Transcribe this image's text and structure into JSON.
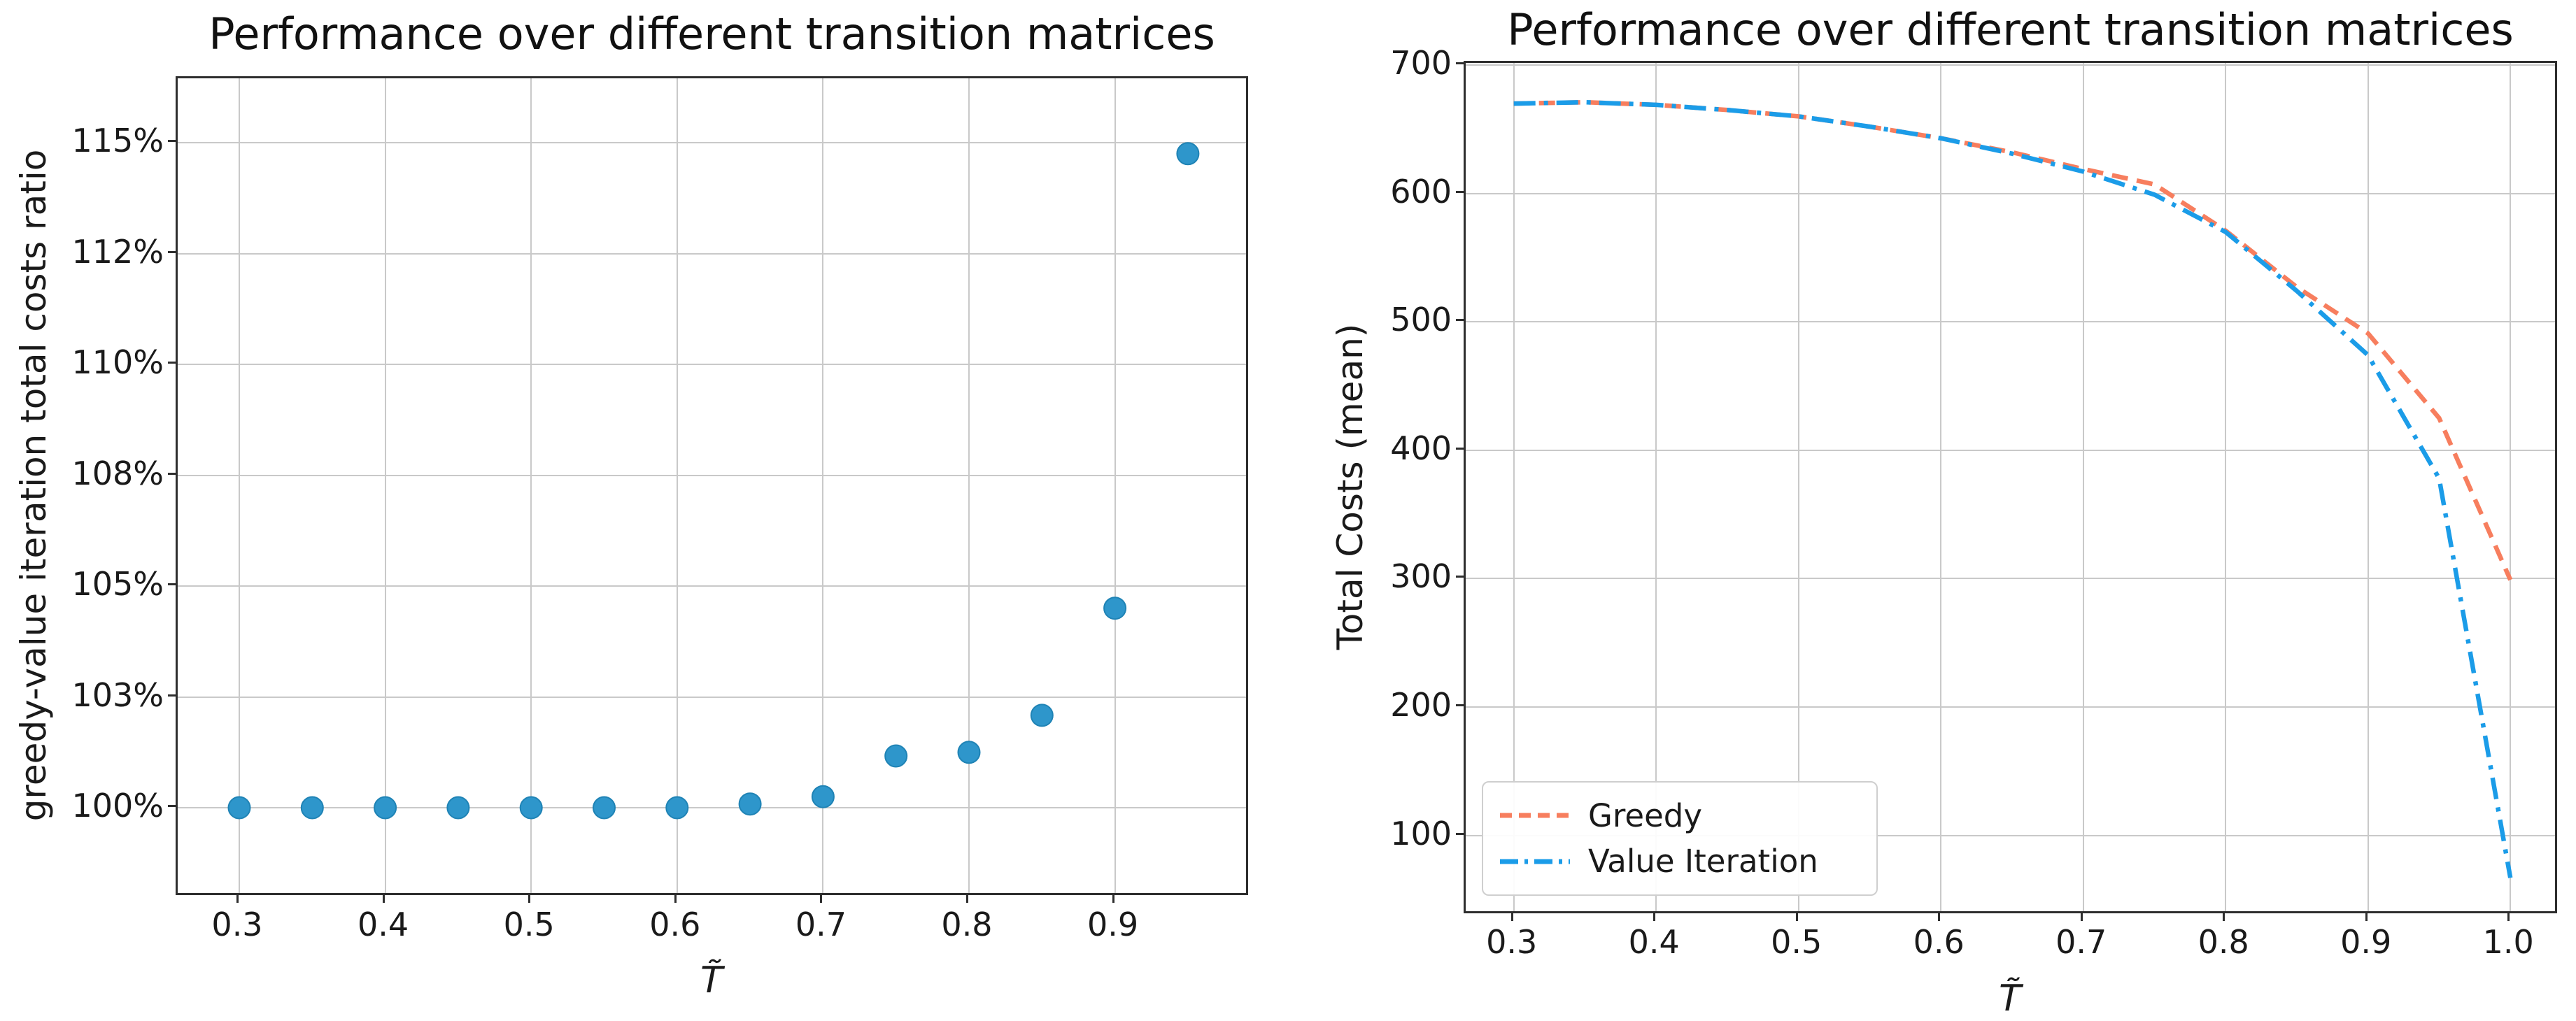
{
  "figure": {
    "background": "#ffffff",
    "text_color": "#1a1a1a",
    "grid_color": "#c9c9c9",
    "spine_color": "#2e2e2e"
  },
  "chart_data": [
    {
      "type": "scatter",
      "title": "Performance over different transition matrices",
      "xlabel": "T̃",
      "ylabel": "greedy-value iteration total costs ratio",
      "x": [
        0.3,
        0.35,
        0.4,
        0.45,
        0.5,
        0.55,
        0.6,
        0.65,
        0.7,
        0.75,
        0.8,
        0.85,
        0.9,
        0.95
      ],
      "ratio_percent": [
        100.0,
        100.0,
        100.0,
        100.0,
        100.0,
        100.0,
        100.0,
        100.1,
        100.3,
        101.4,
        101.5,
        102.5,
        104.6,
        114.7
      ],
      "x_ticks": [
        "0.3",
        "0.4",
        "0.5",
        "0.6",
        "0.7",
        "0.8",
        "0.9"
      ],
      "x_tick_values": [
        0.3,
        0.4,
        0.5,
        0.6,
        0.7,
        0.8,
        0.9
      ],
      "y_tick_labels": [
        "100%",
        "103%",
        "105%",
        "108%",
        "110%",
        "112%",
        "115%"
      ],
      "y_tick_values": [
        100,
        103,
        105,
        108,
        110,
        112,
        115
      ],
      "grid": true,
      "legend_position": "none",
      "marker_color": "#2e96cb",
      "marker_edge_color": "#1f83b5"
    },
    {
      "type": "line",
      "title": "Performance over different transition matrices",
      "xlabel": "T̃",
      "ylabel": "Total Costs (mean)",
      "x": [
        0.3,
        0.35,
        0.4,
        0.45,
        0.5,
        0.55,
        0.6,
        0.65,
        0.7,
        0.75,
        0.8,
        0.85,
        0.9,
        0.95,
        1.0
      ],
      "series": [
        {
          "name": "Greedy",
          "values": [
            670,
            671,
            669,
            665,
            660,
            652,
            643,
            632,
            619,
            607,
            571,
            527,
            491,
            425,
            299
          ],
          "color": "#f77e5e",
          "dash": "dashed"
        },
        {
          "name": "Value Iteration",
          "values": [
            670,
            671,
            669,
            665,
            660,
            652,
            643,
            631,
            617,
            599,
            570,
            524,
            474,
            378,
            67
          ],
          "color": "#1b9ce8",
          "dash": "dashdot"
        }
      ],
      "x_ticks": [
        "0.3",
        "0.4",
        "0.5",
        "0.6",
        "0.7",
        "0.8",
        "0.9",
        "1.0"
      ],
      "x_tick_values": [
        0.3,
        0.4,
        0.5,
        0.6,
        0.7,
        0.8,
        0.9,
        1.0
      ],
      "y_tick_labels": [
        "100",
        "200",
        "300",
        "400",
        "500",
        "600",
        "700"
      ],
      "y_tick_values": [
        100,
        200,
        300,
        400,
        500,
        600,
        700
      ],
      "ylim": [
        37,
        702
      ],
      "grid": true,
      "legend_position": "lower left"
    }
  ]
}
